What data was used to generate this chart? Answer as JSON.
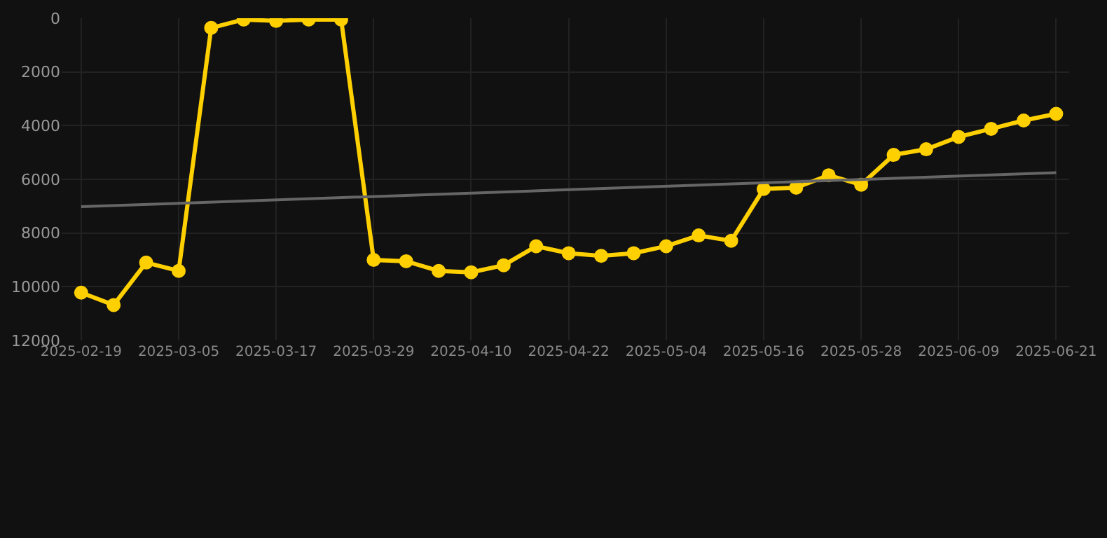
{
  "chart_data": {
    "type": "line",
    "categories": [
      "2025-02-19",
      null,
      null,
      "2025-03-05",
      null,
      null,
      "2025-03-17",
      null,
      null,
      "2025-03-29",
      null,
      null,
      "2025-04-10",
      null,
      null,
      "2025-04-22",
      null,
      null,
      "2025-05-04",
      null,
      null,
      "2025-05-16",
      null,
      null,
      "2025-05-28",
      null,
      null,
      "2025-06-09",
      null,
      null,
      "2025-06-21"
    ],
    "series": [
      {
        "color": "#ffd000",
        "marker": "circle",
        "values": [
          10220,
          10680,
          9100,
          9410,
          360,
          50,
          100,
          50,
          50,
          9000,
          9050,
          9410,
          9460,
          9200,
          8490,
          8750,
          8850,
          8750,
          8490,
          8090,
          8290,
          6360,
          6310,
          5850,
          6200,
          5090,
          4880,
          4420,
          4120,
          3810,
          3560
        ]
      },
      {
        "color": "#666666",
        "marker": "none",
        "values": [
          7020,
          null,
          null,
          null,
          null,
          null,
          null,
          null,
          null,
          null,
          null,
          null,
          null,
          null,
          null,
          null,
          null,
          null,
          null,
          null,
          null,
          null,
          null,
          null,
          null,
          null,
          null,
          null,
          null,
          null,
          5750
        ]
      }
    ],
    "ylim": [
      12000,
      0
    ],
    "yticks": [
      0,
      2000,
      4000,
      6000,
      8000,
      10000,
      12000
    ],
    "grid": true
  }
}
